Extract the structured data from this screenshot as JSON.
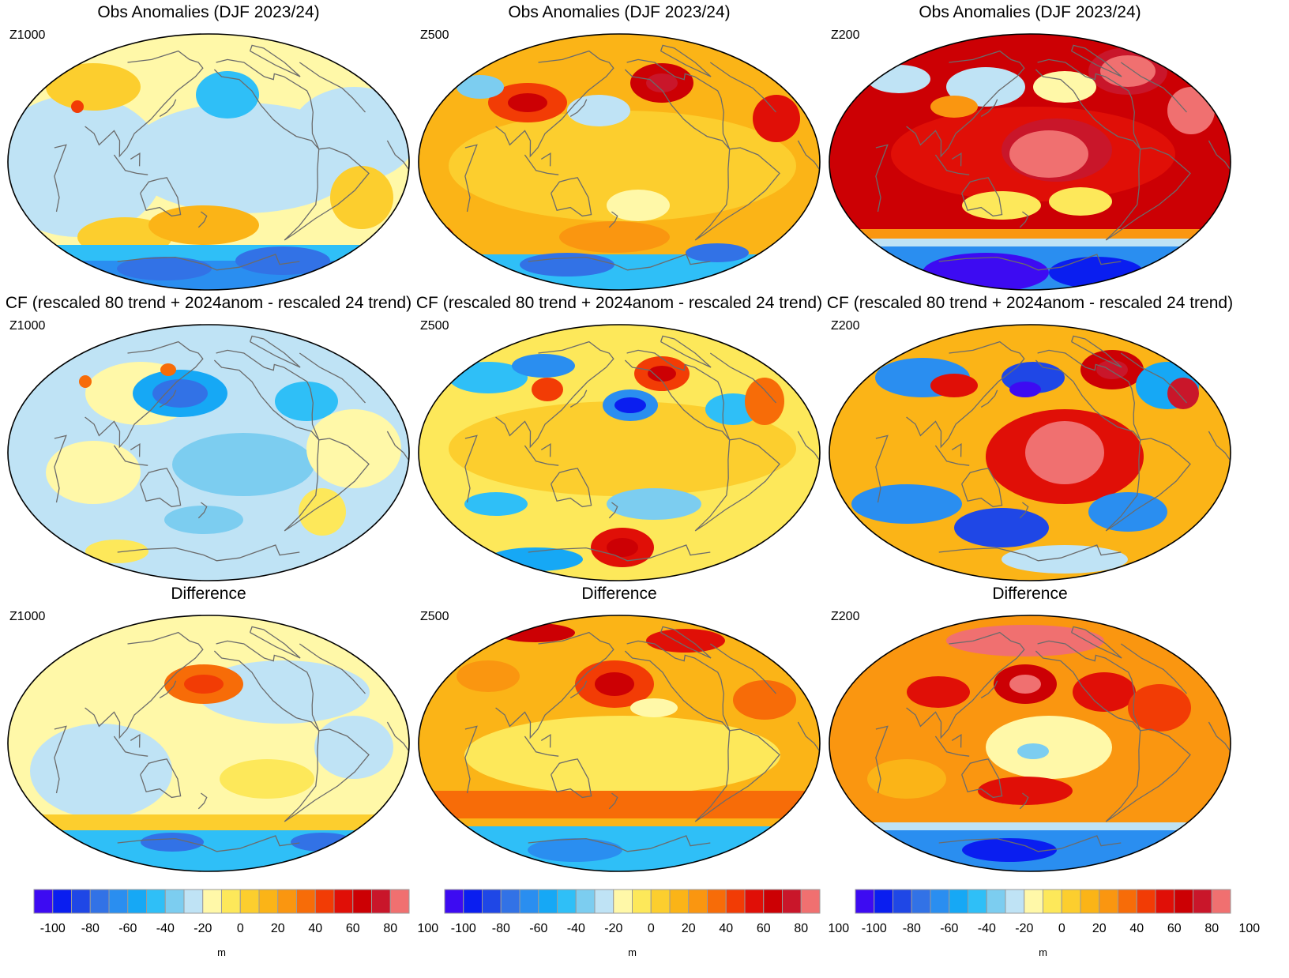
{
  "figure": {
    "rows": [
      {
        "title": "Obs Anomalies (DJF 2023/24)",
        "panels": [
          {
            "level": "Z1000",
            "field": "z1000_obs"
          },
          {
            "level": "Z500",
            "field": "z500_obs"
          },
          {
            "level": "Z200",
            "field": "z200_obs"
          }
        ]
      },
      {
        "title": "CF (rescaled 80 trend + 2024anom - rescaled 24 trend)",
        "panels": [
          {
            "level": "Z1000",
            "field": "z1000_cf"
          },
          {
            "level": "Z500",
            "field": "z500_cf"
          },
          {
            "level": "Z200",
            "field": "z200_cf"
          }
        ]
      },
      {
        "title": "Difference",
        "panels": [
          {
            "level": "Z1000",
            "field": "z1000_diff"
          },
          {
            "level": "Z500",
            "field": "z500_diff"
          },
          {
            "level": "Z200",
            "field": "z200_diff"
          }
        ]
      }
    ]
  },
  "colorbar": {
    "unit": "m",
    "tick_labels": [
      "-100",
      "-80",
      "-60",
      "-40",
      "-20",
      "0",
      "20",
      "40",
      "60",
      "80",
      "100"
    ],
    "colors": [
      "#3d0bf2",
      "#0a1ef0",
      "#1f47e6",
      "#3272e6",
      "#2a8ef0",
      "#16a8f5",
      "#2fbff7",
      "#7ccdf0",
      "#bfe3f5",
      "#fff8a8",
      "#fde85a",
      "#fcce2e",
      "#fbb417",
      "#fa9610",
      "#f76c08",
      "#f23c05",
      "#e00f07",
      "#cc0004",
      "#c9162a",
      "#f07070"
    ]
  },
  "styles": {
    "coast_color": "#6b6b6b",
    "frame_color": "#000000"
  }
}
